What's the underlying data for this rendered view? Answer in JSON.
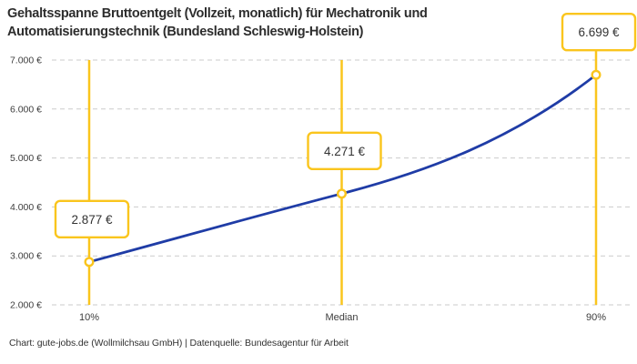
{
  "title": {
    "line1": "Gehaltsspanne Bruttoentgelt (Vollzeit, monatlich) für Mechatronik und",
    "line2": "Automatisierungstechnik (Bundesland Schleswig-Holstein)"
  },
  "footer": "Chart: gute-jobs.de (Wollmilchsau GmbH) | Datenquelle: Bundesagentur für Arbeit",
  "colors": {
    "accent_yellow": "#FAC51D",
    "line_blue": "#1F3CA6",
    "grid_gray": "#CBCBCB",
    "axis_text": "#3D3D3D",
    "label_text": "#333333",
    "marker_fill": "#FFFFFF"
  },
  "chart_data": {
    "type": "line",
    "title": "Gehaltsspanne Bruttoentgelt (Vollzeit, monatlich) für Mechatronik und Automatisierungstechnik (Bundesland Schleswig-Holstein)",
    "categories": [
      "10%",
      "Median",
      "90%"
    ],
    "values": [
      2877,
      4271,
      6699
    ],
    "point_labels": [
      "2.877 €",
      "4.271 €",
      "6.699 €"
    ],
    "xlabel": "",
    "ylabel": "",
    "ylim": [
      2000,
      7000
    ],
    "y_ticks": [
      7000,
      6000,
      5000,
      4000,
      3000,
      2000
    ],
    "y_tick_labels": [
      "7.000 €",
      "6.000 €",
      "5.000 €",
      "4.000 €",
      "3.000 €",
      "2.000 €"
    ],
    "grid": "horizontal dashed",
    "legend": "none",
    "annotations": "vertical yellow guide line at each percentile; value shown in yellow-bordered white box above each point; open circle markers"
  }
}
